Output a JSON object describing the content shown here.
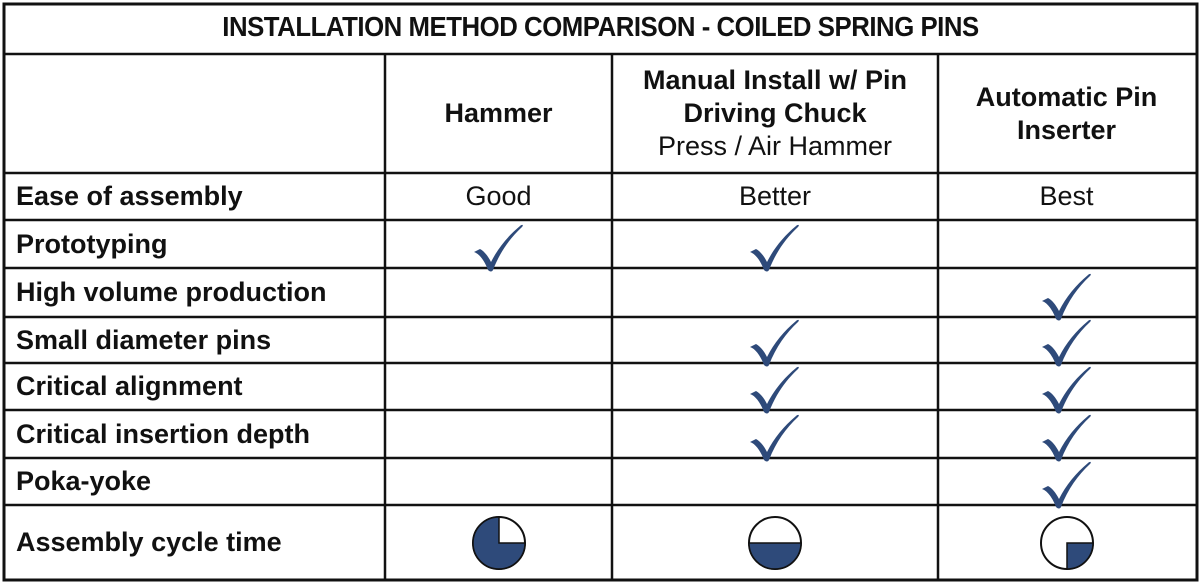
{
  "title": "INSTALLATION METHOD COMPARISON - COILED SPRING PINS",
  "columns": [
    {
      "lines": [
        {
          "text": "Hammer",
          "bold": true
        }
      ]
    },
    {
      "lines": [
        {
          "text": "Manual Install w/ Pin",
          "bold": true
        },
        {
          "text": "Driving Chuck",
          "bold": true
        },
        {
          "text": "Press / Air Hammer",
          "bold": false
        }
      ]
    },
    {
      "lines": [
        {
          "text": "Automatic Pin",
          "bold": true
        },
        {
          "text": "Inserter",
          "bold": true
        }
      ]
    }
  ],
  "rows": [
    {
      "label": "Ease of assembly",
      "cells": [
        {
          "type": "text",
          "value": "Good"
        },
        {
          "type": "text",
          "value": "Better"
        },
        {
          "type": "text",
          "value": "Best"
        }
      ]
    },
    {
      "label": "Prototyping",
      "cells": [
        {
          "type": "check"
        },
        {
          "type": "check"
        },
        {
          "type": "none"
        }
      ]
    },
    {
      "label": "High volume production",
      "cells": [
        {
          "type": "none"
        },
        {
          "type": "none"
        },
        {
          "type": "check"
        }
      ]
    },
    {
      "label": "Small diameter pins",
      "cells": [
        {
          "type": "none"
        },
        {
          "type": "check"
        },
        {
          "type": "check"
        }
      ]
    },
    {
      "label": "Critical alignment",
      "cells": [
        {
          "type": "none"
        },
        {
          "type": "check"
        },
        {
          "type": "check"
        }
      ]
    },
    {
      "label": "Critical insertion depth",
      "cells": [
        {
          "type": "none"
        },
        {
          "type": "check"
        },
        {
          "type": "check"
        }
      ]
    },
    {
      "label": "Poka-yoke",
      "cells": [
        {
          "type": "none"
        },
        {
          "type": "none"
        },
        {
          "type": "check"
        }
      ]
    },
    {
      "label": "Assembly cycle time",
      "cells": [
        {
          "type": "pie",
          "fraction": 0.75
        },
        {
          "type": "pie",
          "fraction": 0.5
        },
        {
          "type": "pie",
          "fraction": 0.25
        }
      ]
    }
  ],
  "colors": {
    "mark": "#2e4a7a",
    "border": "#111111"
  },
  "icons": {
    "check": "check-mark-icon",
    "pie": "quarter-pie-icon"
  }
}
